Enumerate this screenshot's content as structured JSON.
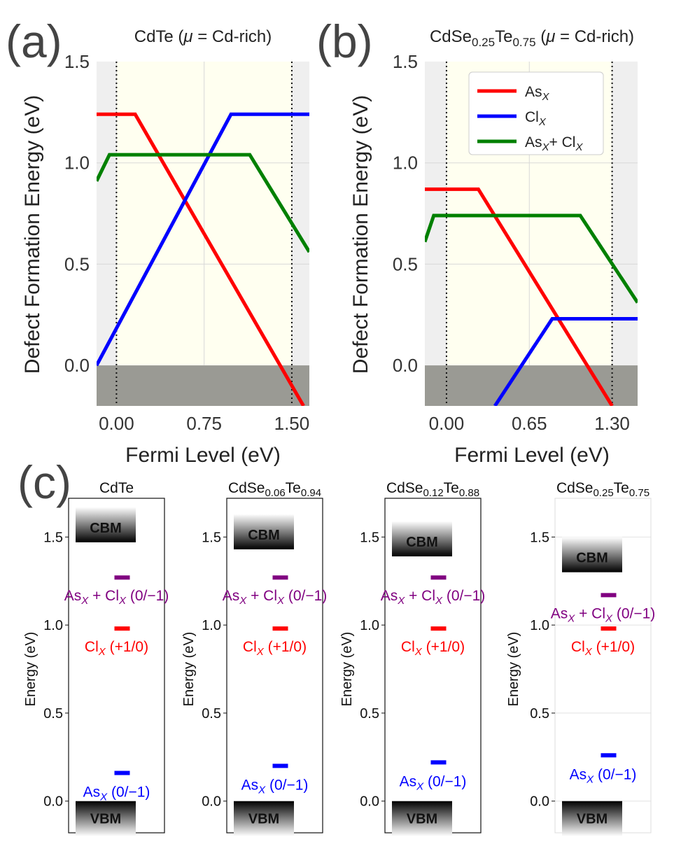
{
  "panels": {
    "a": {
      "letter": "(a)",
      "title_pre": "CdTe (",
      "title_mu": "μ",
      "title_post": " = Cd-rich)"
    },
    "b": {
      "letter": "(b)",
      "title_base": "CdSe",
      "title_sub1": "0.25",
      "title_mid": "Te",
      "title_sub2": "0.75",
      "title_open": " (",
      "title_mu": "μ",
      "title_post": " = Cd-rich)"
    },
    "c": {
      "letter": "(c)"
    }
  },
  "legend": {
    "as_main": "As",
    "as_sub": "X",
    "cl_main": "Cl",
    "cl_sub": "X",
    "ascl_main1": "As",
    "ascl_sub1": "X",
    "ascl_mid": "+ Cl",
    "ascl_sub2": "X"
  },
  "colors": {
    "as": "#ff0000",
    "cl": "#0000ff",
    "ascl": "#008000",
    "purple": "#800080"
  },
  "chart_data": [
    {
      "type": "line",
      "id": "a",
      "title": "CdTe (μ = Cd-rich)",
      "xlabel": "Fermi Level (eV)",
      "ylabel": "Defect Formation Energy (eV)",
      "xlim": [
        -0.17,
        1.65
      ],
      "ylim": [
        -0.2,
        1.5
      ],
      "xticks": [
        0.0,
        0.75,
        1.5
      ],
      "xtick_labels": [
        "0.00",
        "0.75",
        "1.50"
      ],
      "yticks": [
        0.0,
        0.5,
        1.0,
        1.5
      ],
      "ytick_labels": [
        "0.0",
        "0.5",
        "1.0",
        "1.5"
      ],
      "gap": [
        0.0,
        1.5
      ],
      "series": [
        {
          "name": "AsX",
          "points": [
            [
              -0.17,
              1.24
            ],
            [
              0.16,
              1.24
            ],
            [
              1.6,
              -0.2
            ]
          ]
        },
        {
          "name": "ClX",
          "points": [
            [
              -0.17,
              0.0
            ],
            [
              0.98,
              1.24
            ],
            [
              1.65,
              1.24
            ]
          ]
        },
        {
          "name": "AsX+ClX",
          "points": [
            [
              -0.17,
              0.91
            ],
            [
              -0.06,
              1.04
            ],
            [
              1.14,
              1.04
            ],
            [
              1.65,
              0.56
            ]
          ]
        }
      ]
    },
    {
      "type": "line",
      "id": "b",
      "title": "CdSe0.25Te0.75 (μ = Cd-rich)",
      "xlabel": "Fermi Level (eV)",
      "ylabel": "Defect Formation Energy (eV)",
      "xlim": [
        -0.17,
        1.5
      ],
      "ylim": [
        -0.2,
        1.5
      ],
      "xticks": [
        0.0,
        0.65,
        1.3
      ],
      "xtick_labels": [
        "0.00",
        "0.65",
        "1.30"
      ],
      "yticks": [
        0.0,
        0.5,
        1.0,
        1.5
      ],
      "ytick_labels": [
        "0.0",
        "0.5",
        "1.0",
        "1.5"
      ],
      "gap": [
        0.0,
        1.3
      ],
      "series": [
        {
          "name": "AsX",
          "points": [
            [
              -0.17,
              0.87
            ],
            [
              0.25,
              0.87
            ],
            [
              1.3,
              -0.2
            ]
          ]
        },
        {
          "name": "ClX",
          "points": [
            [
              0.38,
              -0.2
            ],
            [
              0.83,
              0.23
            ],
            [
              1.5,
              0.23
            ]
          ]
        },
        {
          "name": "AsX+ClX",
          "points": [
            [
              -0.17,
              0.61
            ],
            [
              -0.1,
              0.74
            ],
            [
              1.05,
              0.74
            ],
            [
              1.5,
              0.31
            ]
          ]
        }
      ]
    },
    {
      "type": "level-diagram",
      "id": "c",
      "ylabel": "Energy (eV)",
      "ylim": [
        -0.18,
        1.72
      ],
      "yticks": [
        0.0,
        0.5,
        1.0,
        1.5
      ],
      "ytick_labels": [
        "0.0",
        "0.5",
        "1.0",
        "1.5"
      ],
      "band_labels": {
        "cbm": "CBM",
        "vbm": "VBM"
      },
      "subpanels": [
        {
          "title_base": "CdTe",
          "sub1": "",
          "mid": "",
          "sub2": "",
          "gap": 1.47,
          "as_level": 0.16,
          "cl_level": 0.98,
          "ascl_level": 1.27,
          "style": "box"
        },
        {
          "title_base": "CdSe",
          "sub1": "0.06",
          "mid": "Te",
          "sub2": "0.94",
          "gap": 1.43,
          "as_level": 0.2,
          "cl_level": 0.98,
          "ascl_level": 1.27,
          "style": "box"
        },
        {
          "title_base": "CdSe",
          "sub1": "0.12",
          "mid": "Te",
          "sub2": "0.88",
          "gap": 1.39,
          "as_level": 0.22,
          "cl_level": 0.98,
          "ascl_level": 1.27,
          "style": "box"
        },
        {
          "title_base": "CdSe",
          "sub1": "0.25",
          "mid": "Te",
          "sub2": "0.75",
          "gap": 1.3,
          "as_level": 0.26,
          "cl_level": 0.98,
          "ascl_level": 1.17,
          "style": "open"
        }
      ],
      "level_labels": {
        "as": {
          "main": "As",
          "sub": "X",
          "charge": " (0/−1)"
        },
        "cl": {
          "main": "Cl",
          "sub": "X",
          "charge": " (+1/0)"
        },
        "ascl": {
          "main": "As",
          "sub": "X",
          "mid": " + Cl",
          "sub2": "X",
          "charge": " (0/−1)"
        }
      }
    }
  ]
}
